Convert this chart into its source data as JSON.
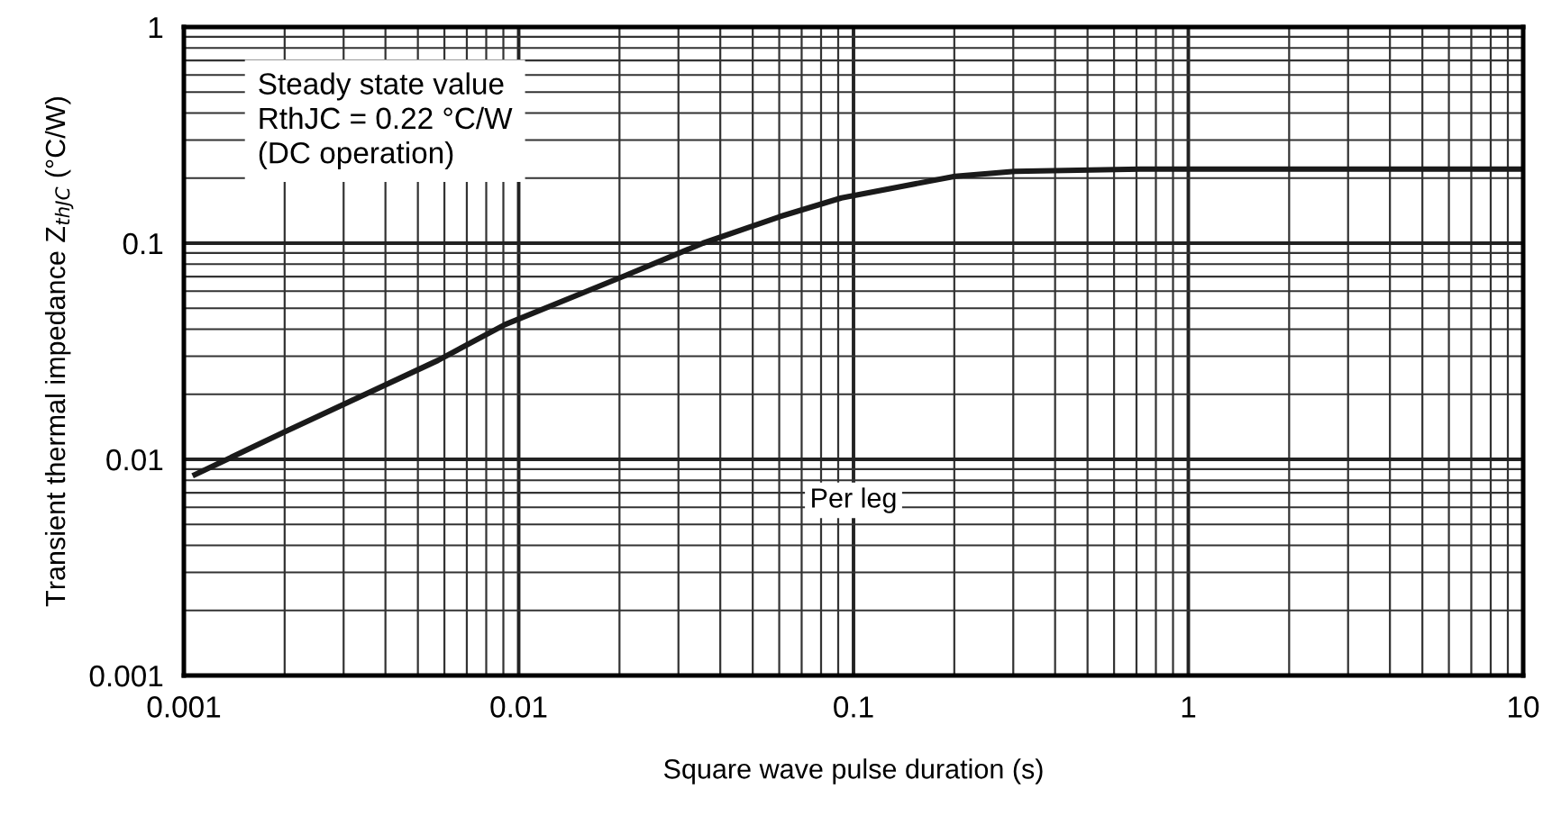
{
  "chart_data": {
    "type": "line",
    "xlabel": "Square wave pulse duration (s)",
    "ylabel": "Transient thermal impedance Z$_{thJC}$ (°C/W)",
    "log": "xy",
    "xlim": [
      0.001,
      10
    ],
    "ylim": [
      0.001,
      1
    ],
    "xticks": [
      0.001,
      0.01,
      0.1,
      1,
      10
    ],
    "yticks": [
      0.001,
      0.01,
      0.1,
      1
    ],
    "grid": true,
    "marker": "none",
    "line_style": "solid",
    "series": [
      {
        "color": "#1a1a1a",
        "x": [
          0.00108,
          0.00198,
          0.00574,
          0.0091,
          0.0208,
          0.0355,
          0.0605,
          0.092,
          0.201,
          0.303,
          0.72,
          1,
          10
        ],
        "values": [
          0.0085,
          0.0133,
          0.0287,
          0.042,
          0.0708,
          0.1,
          0.133,
          0.162,
          0.204,
          0.215,
          0.22,
          0.22,
          0.22
        ]
      }
    ],
    "annotations": [
      "Steady state value\nRthJC = 0.22 °C/W\n(DC operation)",
      "Per leg"
    ]
  }
}
